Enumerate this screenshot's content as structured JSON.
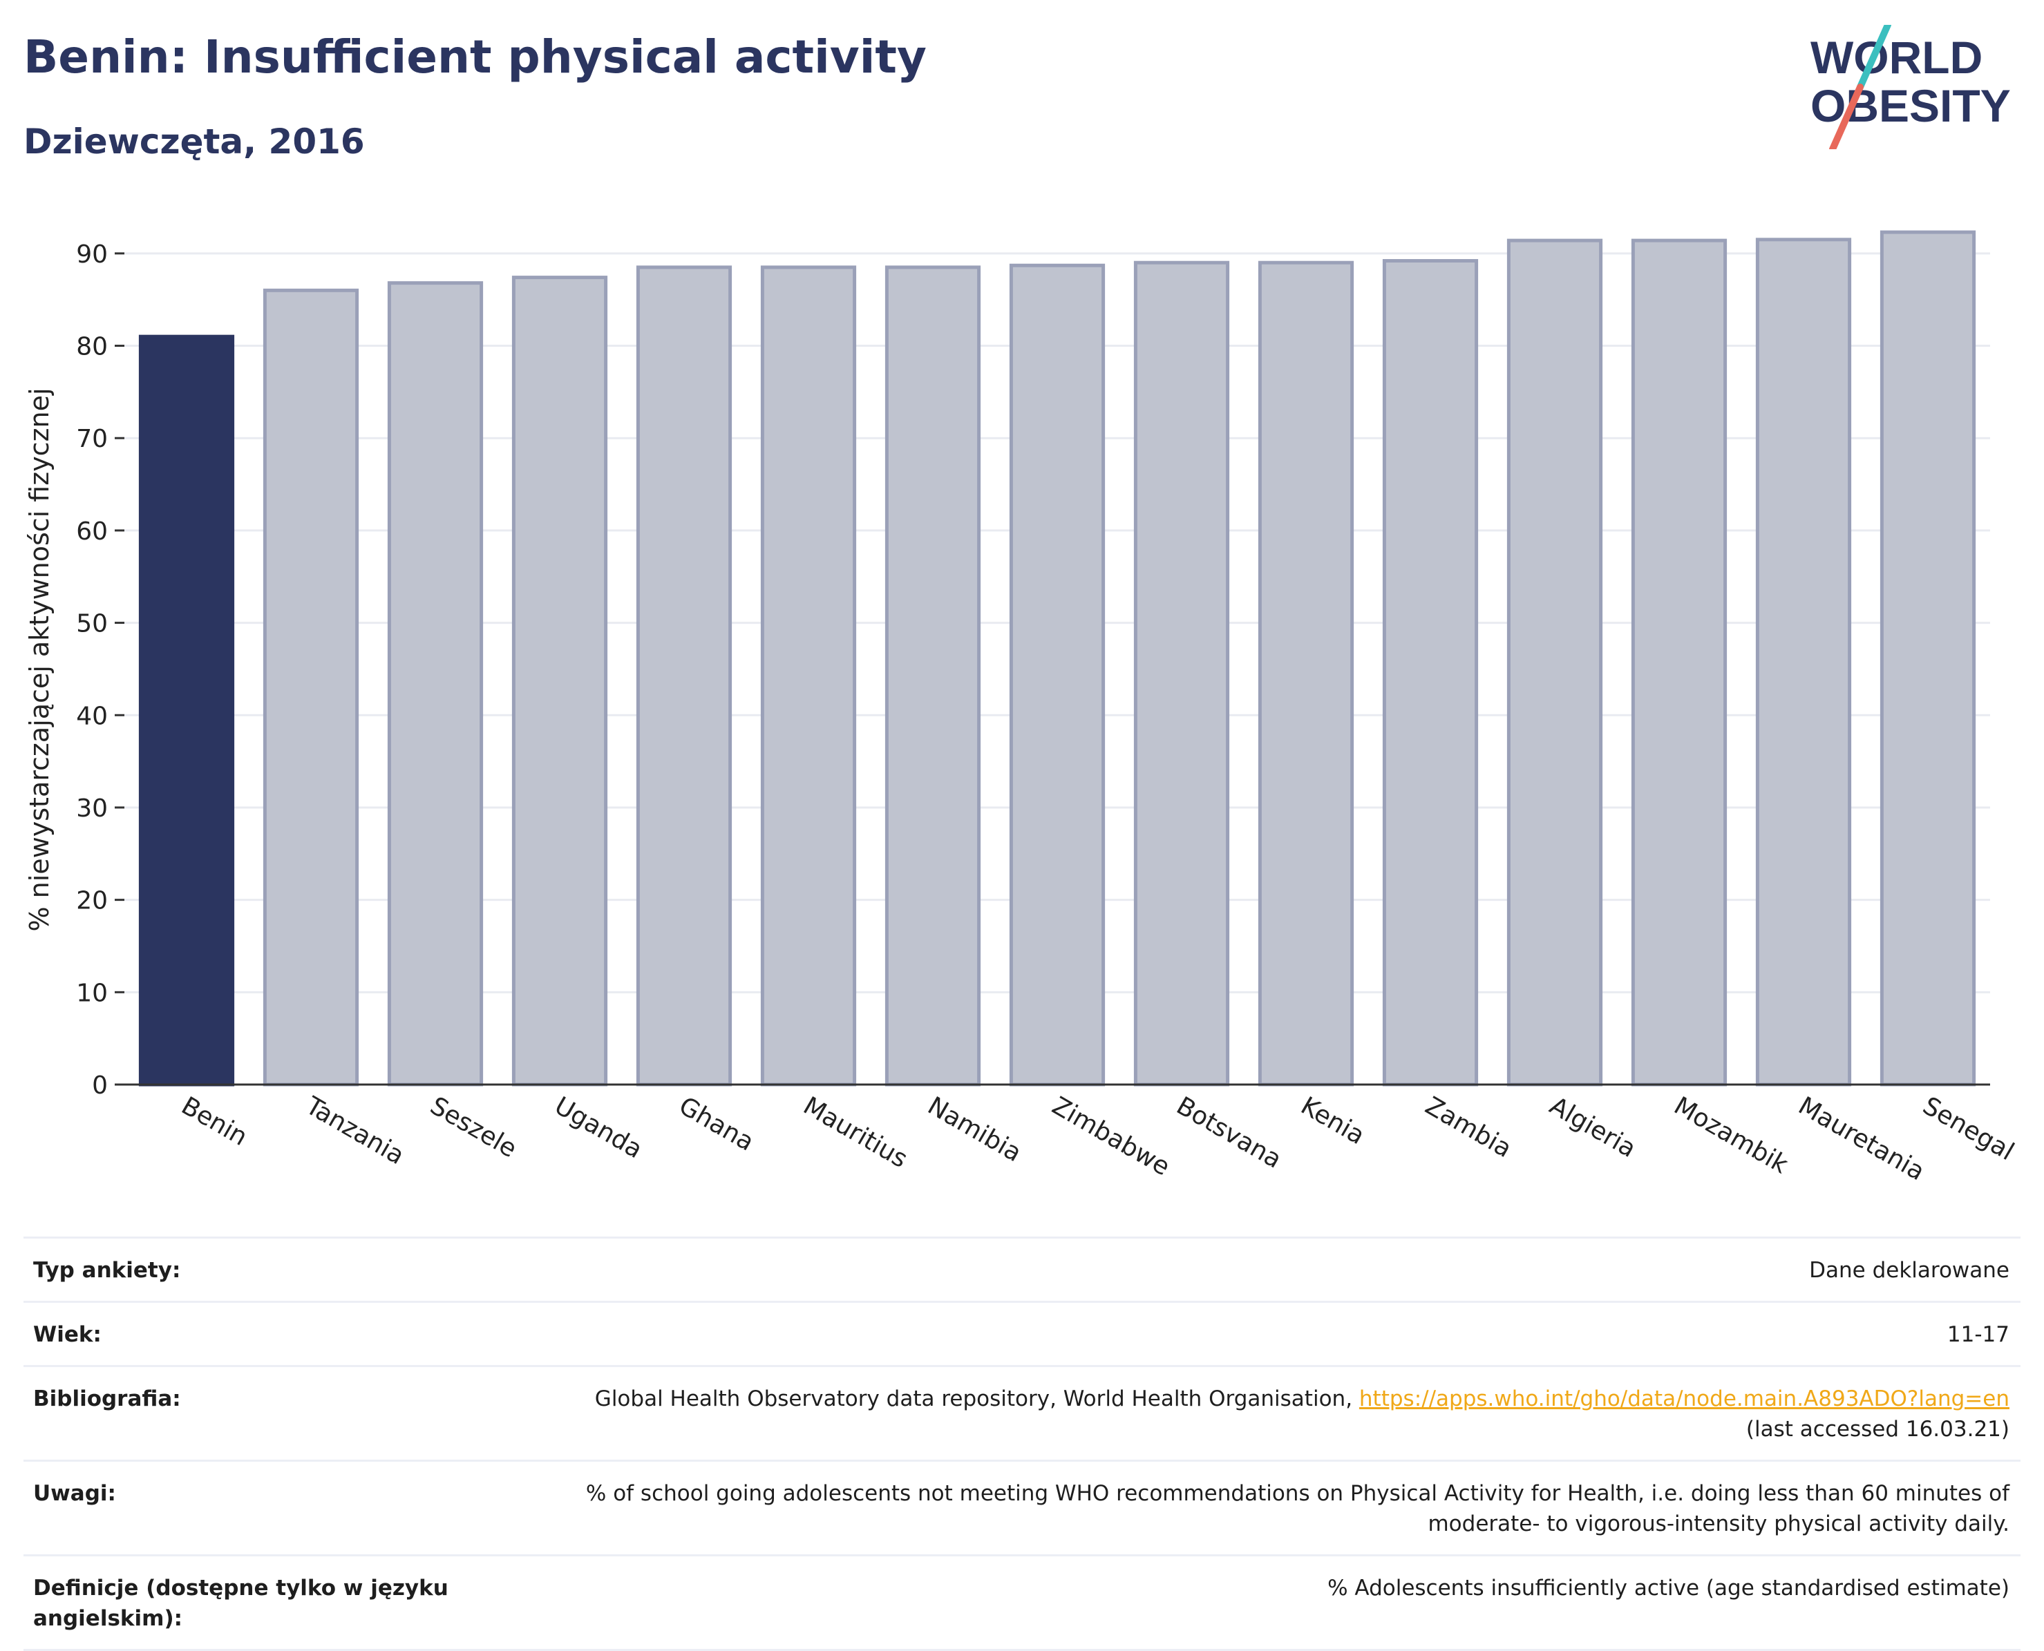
{
  "header": {
    "title": "Benin: Insufficient physical activity",
    "subtitle": "Dziewczęta, 2016"
  },
  "logo": {
    "line1": "WORLD",
    "line2": "OBESITY",
    "accent_teal": "#3bbfbf",
    "accent_coral": "#e8685a",
    "text_color": "#2b3560"
  },
  "chart_data": {
    "type": "bar",
    "title": "Benin: Insufficient physical activity",
    "subtitle": "Dziewczęta, 2016",
    "ylabel": "% niewystarczającej aktywności fizycznej",
    "xlabel": "",
    "ylim": [
      0,
      95
    ],
    "yticks": [
      0,
      10,
      20,
      30,
      40,
      50,
      60,
      70,
      80,
      90
    ],
    "grid": true,
    "categories": [
      "Benin",
      "Tanzania",
      "Seszele",
      "Uganda",
      "Ghana",
      "Mauritius",
      "Namibia",
      "Zimbabwe",
      "Botsvana",
      "Kenia",
      "Zambia",
      "Algieria",
      "Mozambik",
      "Mauretania",
      "Senegal"
    ],
    "values": [
      81.0,
      86.0,
      86.8,
      87.4,
      88.5,
      88.5,
      88.5,
      88.7,
      89.0,
      89.0,
      89.2,
      91.4,
      91.4,
      91.5,
      92.3
    ],
    "highlight": "Benin",
    "highlight_color": "#2b3560",
    "bar_color": "#bfc3cf",
    "bar_edge_color": "#9aa0b8"
  },
  "info": {
    "rows": [
      {
        "label": "Typ ankiety:",
        "value": "Dane deklarowane"
      },
      {
        "label": "Wiek:",
        "value": "11-17"
      },
      {
        "label": "Bibliografia:",
        "value_prefix": "Global Health Observatory data repository, World Health Organisation, ",
        "link": "https://apps.who.int/gho/data/node.main.A893ADO?lang=en",
        "value_suffix": "(last accessed 16.03.21)"
      },
      {
        "label": "Uwagi:",
        "value": "% of school going adolescents not meeting WHO recommendations on Physical Activity for Health, i.e. doing less than 60 minutes of moderate- to vigorous-intensity physical activity daily."
      },
      {
        "label": "Definicje (dostępne tylko w języku angielskim):",
        "value": "% Adolescents insufficiently active (age standardised estimate)"
      }
    ]
  }
}
